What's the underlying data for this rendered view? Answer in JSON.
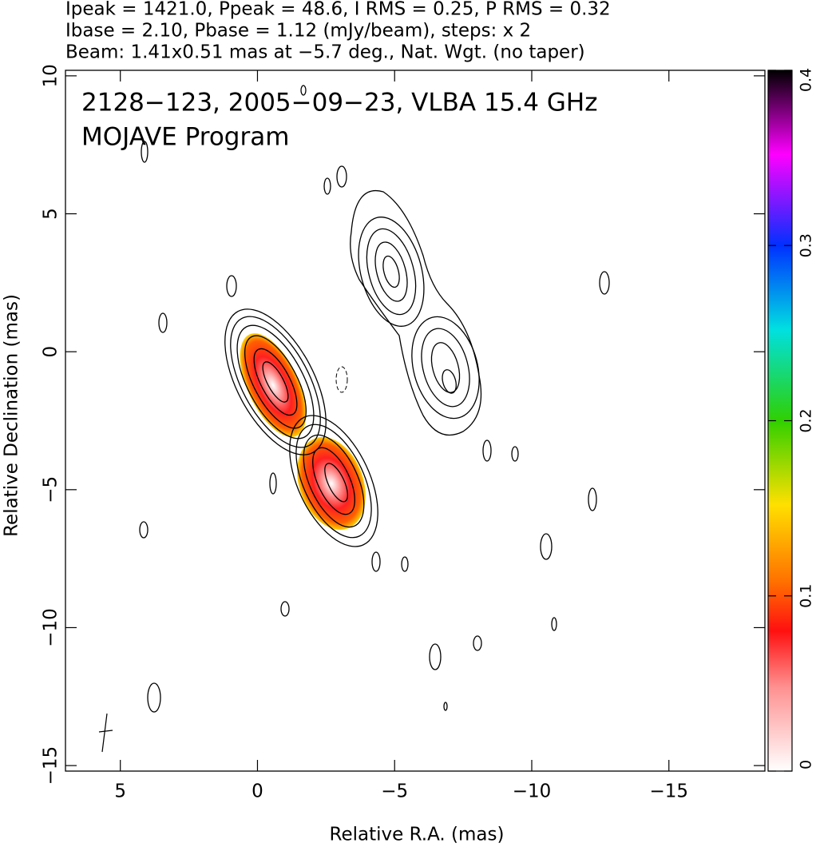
{
  "chart_data": {
    "type": "contour",
    "header": [
      "Ipeak = 1421.0, Ppeak = 48.6, I RMS = 0.25, P RMS = 0.32",
      "Ibase = 2.10, Pbase = 1.12 (mJy/beam), steps: x 2",
      "Beam: 1.41x0.51 mas at −5.7 deg., Nat. Wgt. (no taper)"
    ],
    "title": "2128−123, 2005−09−23, VLBA 15.4 GHz",
    "subtitle": "MOJAVE Program",
    "x_label": "Relative R.A. (mas)",
    "y_label": "Relative Declination (mas)",
    "xlim": [
      7,
      -18.5
    ],
    "ylim": [
      10.2,
      -15.2
    ],
    "xticks": [
      5,
      0,
      {
        "value": -5,
        "label": "−5"
      },
      {
        "value": -10,
        "label": "−10"
      },
      {
        "value": -15,
        "label": "−15"
      }
    ],
    "yticks": [
      10,
      5,
      0,
      {
        "value": -5,
        "label": "−5"
      },
      {
        "value": -10,
        "label": "−10"
      },
      {
        "value": -15,
        "label": "−15"
      }
    ],
    "colorbar_lim": [
      0,
      0.4
    ],
    "colorbar_ticks": [
      0,
      0.1,
      0.2,
      0.3,
      0.4
    ]
  }
}
